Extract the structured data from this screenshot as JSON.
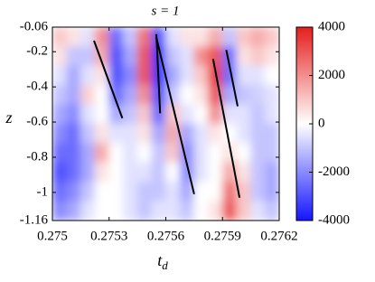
{
  "chart_data": {
    "type": "heatmap",
    "title": "s = 1",
    "xlabel": "t",
    "xlabel_subscript": "d",
    "ylabel": "z",
    "x": [
      0.2750375,
      0.2751125,
      0.2751875,
      0.2752625,
      0.2753375,
      0.2754125,
      0.2754875,
      0.2755625,
      0.2756375,
      0.2757125,
      0.2757875,
      0.2758625,
      0.2759375,
      0.2760125,
      0.2760875,
      0.2761625
    ],
    "y": [
      -0.115,
      -0.225,
      -0.335,
      -0.445,
      -0.555,
      -0.665,
      -0.775,
      -0.885,
      -0.995,
      -1.105
    ],
    "z": [
      [
        1000,
        500,
        -500,
        2000,
        -2500,
        -1000,
        2500,
        -3000,
        -500,
        500,
        500,
        1500,
        -1000,
        1000,
        1500,
        1000
      ],
      [
        500,
        -1000,
        -1000,
        1500,
        -3000,
        -1500,
        3000,
        -3500,
        -1000,
        -500,
        2000,
        3000,
        -2500,
        500,
        1000,
        500
      ],
      [
        -500,
        -1500,
        -500,
        500,
        -3000,
        -2000,
        3000,
        -3500,
        -1500,
        -500,
        1000,
        3500,
        -2500,
        -500,
        -500,
        0
      ],
      [
        -1000,
        -1500,
        800,
        0,
        -2500,
        -1500,
        2000,
        -3000,
        -1000,
        0,
        500,
        3000,
        -1500,
        -1000,
        -800,
        -500
      ],
      [
        -1500,
        -2000,
        -500,
        0,
        -1500,
        -1000,
        1000,
        -2500,
        1000,
        -500,
        0,
        2000,
        -500,
        -500,
        -1000,
        -500
      ],
      [
        -2000,
        -2500,
        -1000,
        500,
        -500,
        -500,
        500,
        -1500,
        1500,
        -1500,
        -500,
        500,
        0,
        -500,
        -1000,
        -1000
      ],
      [
        -2500,
        -2500,
        -1500,
        1500,
        0,
        -500,
        0,
        -1000,
        1000,
        -2000,
        -500,
        0,
        500,
        0,
        -1000,
        -1000
      ],
      [
        -3000,
        -2500,
        -1500,
        500,
        0,
        -500,
        -500,
        -1000,
        0,
        -2000,
        -500,
        0,
        1500,
        500,
        -1000,
        -1500
      ],
      [
        -2500,
        -2000,
        -1000,
        0,
        0,
        -500,
        -1000,
        -1000,
        -500,
        -1500,
        0,
        0,
        2500,
        1000,
        -1000,
        -1500
      ],
      [
        -2000,
        -1500,
        -500,
        0,
        0,
        -500,
        -1000,
        -500,
        -500,
        -1000,
        0,
        500,
        3000,
        1000,
        -500,
        -1000
      ]
    ],
    "xlim": [
      0.275,
      0.2762
    ],
    "xticks": [
      0.275,
      0.2753,
      0.2756,
      0.2759,
      0.2762
    ],
    "ylim": [
      -1.16,
      -0.06
    ],
    "yticks": [
      -0.06,
      -0.2,
      -0.4,
      -0.6,
      -0.8,
      -1,
      -1.16
    ],
    "clim": [
      -4000,
      4000
    ],
    "cticks": [
      -4000,
      -2000,
      0,
      2000,
      4000
    ],
    "colormap": [
      "#1414ff",
      "#ffffff",
      "#e61e1e"
    ],
    "lines": [
      {
        "x": [
          0.27522,
          0.27537
        ],
        "y": [
          -0.137,
          -0.578
        ]
      },
      {
        "x": [
          0.27555,
          0.27557
        ],
        "y": [
          -0.1,
          -0.55
        ]
      },
      {
        "x": [
          0.27555,
          0.27575
        ],
        "y": [
          -0.12,
          -1.01
        ]
      },
      {
        "x": [
          0.27585,
          0.27599
        ],
        "y": [
          -0.24,
          -1.03
        ]
      },
      {
        "x": [
          0.27592,
          0.27598
        ],
        "y": [
          -0.19,
          -0.51
        ]
      }
    ],
    "line_color": "#000000"
  }
}
